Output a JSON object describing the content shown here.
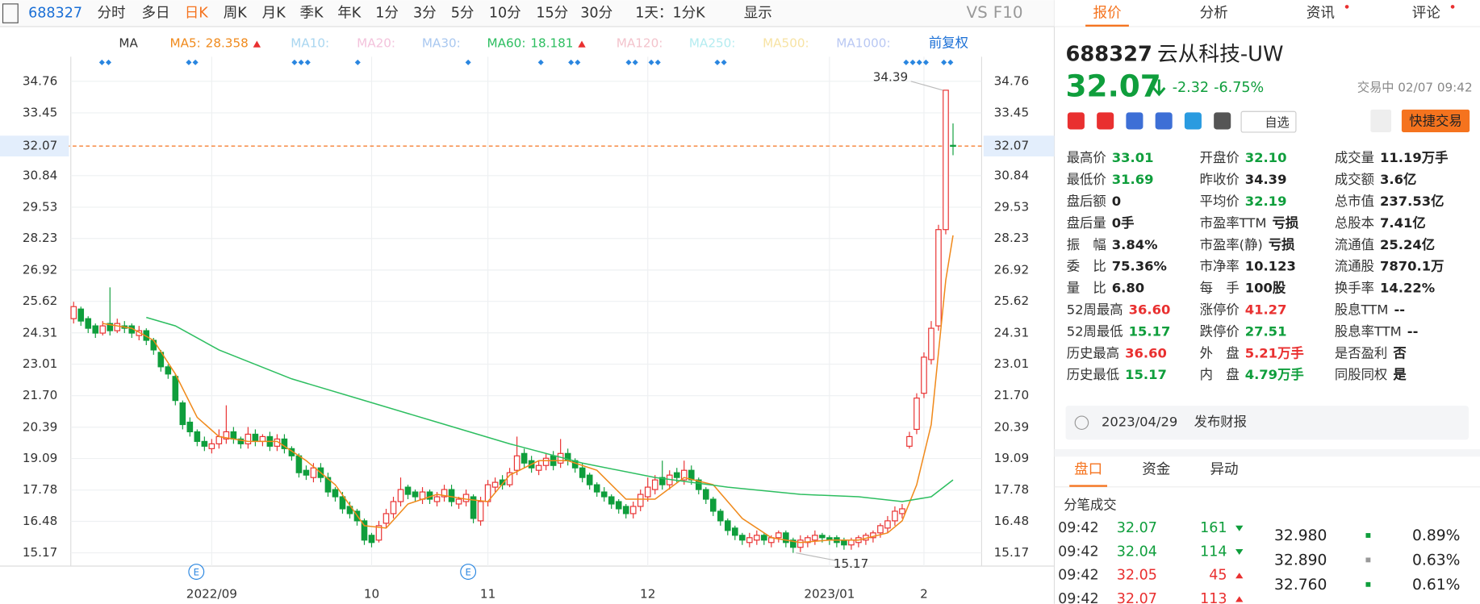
{
  "toolbar": {
    "code": "688327",
    "periods": [
      "分时",
      "多日",
      "日K",
      "周K",
      "月K",
      "季K",
      "年K",
      "1分",
      "3分",
      "5分",
      "10分",
      "15分",
      "30分"
    ],
    "range": "1天：1分K",
    "display": "显示",
    "vs": "VS",
    "f10": "F10"
  },
  "ma_bar": {
    "label": "MA",
    "adjust": "前复权"
  },
  "chart_data": {
    "type": "candlestick",
    "categories": [
      null,
      null,
      null,
      null,
      null,
      null,
      null,
      null,
      null,
      null,
      null,
      null,
      null,
      null,
      null,
      null,
      null,
      null,
      null,
      "2022/09",
      null,
      null,
      null,
      null,
      null,
      null,
      null,
      null,
      null,
      null,
      null,
      null,
      null,
      null,
      null,
      null,
      null,
      null,
      null,
      null,
      null,
      "10",
      null,
      null,
      null,
      null,
      null,
      null,
      null,
      null,
      null,
      null,
      null,
      null,
      null,
      null,
      null,
      "11",
      null,
      null,
      null,
      null,
      null,
      null,
      null,
      null,
      null,
      null,
      null,
      null,
      null,
      null,
      null,
      null,
      null,
      null,
      null,
      null,
      null,
      "12",
      null,
      null,
      null,
      null,
      null,
      null,
      null,
      null,
      null,
      null,
      null,
      null,
      null,
      null,
      null,
      null,
      null,
      null,
      null,
      null,
      null,
      null,
      null,
      null,
      "2023/01",
      null,
      null,
      null,
      null,
      null,
      null,
      null,
      null,
      null,
      null,
      null,
      null,
      "2",
      null,
      null,
      null,
      null
    ],
    "open": [
      24.9,
      25.3,
      24.9,
      24.6,
      24.3,
      24.7,
      24.4,
      24.6,
      24.6,
      24.2,
      24.4,
      24.0,
      23.5,
      22.9,
      22.5,
      21.4,
      20.6,
      20.2,
      19.8,
      19.5,
      19.7,
      19.9,
      20.2,
      19.9,
      19.7,
      20.1,
      19.8,
      20.0,
      19.6,
      19.9,
      19.5,
      19.2,
      18.6,
      18.3,
      18.7,
      18.3,
      17.8,
      17.5,
      17.1,
      16.9,
      16.5,
      15.9,
      15.7,
      16.4,
      16.8,
      17.3,
      17.9,
      17.7,
      17.4,
      17.7,
      17.3,
      17.5,
      17.8,
      17.2,
      17.3,
      17.5,
      16.5,
      17.3,
      17.9,
      18.2,
      18.0,
      18.6,
      19.3,
      19.0,
      18.6,
      18.8,
      19.2,
      18.9,
      19.3,
      19.0,
      18.7,
      18.4,
      18.0,
      17.7,
      17.5,
      17.3,
      17.1,
      16.8,
      17.1,
      17.5,
      17.8,
      18.3,
      18.0,
      18.5,
      18.2,
      18.6,
      18.2,
      17.8,
      17.4,
      16.9,
      16.5,
      16.2,
      15.9,
      15.6,
      15.7,
      15.9,
      15.6,
      15.8,
      16.0,
      15.7,
      15.4,
      15.6,
      15.7,
      15.9,
      15.8,
      15.8,
      15.7,
      15.5,
      15.6,
      15.7,
      15.8,
      16.0,
      16.2,
      16.5,
      16.8,
      19.6,
      20.3,
      21.8,
      23.2,
      24.6,
      28.6,
      32.1
    ],
    "high": [
      25.6,
      25.4,
      25.0,
      24.7,
      24.8,
      26.2,
      24.9,
      24.8,
      24.7,
      24.6,
      24.5,
      24.1,
      23.6,
      23.0,
      22.6,
      21.5,
      20.8,
      20.3,
      20.0,
      19.9,
      20.3,
      21.3,
      20.4,
      20.0,
      20.4,
      20.3,
      20.1,
      20.2,
      20.1,
      20.1,
      19.6,
      19.3,
      18.8,
      18.9,
      18.9,
      18.5,
      17.9,
      17.7,
      17.3,
      17.0,
      16.6,
      16.0,
      16.5,
      17.0,
      17.5,
      18.3,
      18.0,
      17.8,
      17.9,
      17.8,
      17.7,
      18.0,
      18.0,
      17.5,
      17.8,
      17.6,
      17.5,
      18.2,
      18.3,
      18.4,
      18.7,
      20.0,
      19.5,
      19.2,
      19.0,
      19.3,
      19.4,
      19.9,
      19.5,
      19.1,
      18.9,
      18.5,
      18.1,
      17.9,
      17.6,
      17.4,
      17.2,
      17.3,
      17.8,
      18.3,
      18.4,
      19.0,
      18.6,
      18.7,
      19.0,
      18.8,
      18.3,
      17.9,
      17.5,
      17.0,
      16.6,
      16.3,
      16.0,
      16.0,
      16.1,
      16.0,
      15.9,
      16.1,
      16.1,
      15.8,
      15.9,
      15.9,
      16.1,
      16.0,
      15.9,
      15.9,
      15.8,
      15.8,
      15.9,
      16.0,
      16.1,
      16.4,
      16.7,
      17.1,
      17.2,
      20.2,
      21.8,
      23.5,
      24.8,
      28.8,
      34.39,
      33.01
    ],
    "low": [
      24.7,
      24.6,
      24.3,
      24.1,
      24.2,
      24.2,
      24.3,
      24.3,
      24.1,
      24.0,
      23.8,
      23.4,
      22.7,
      22.4,
      21.3,
      20.3,
      20.0,
      19.6,
      19.4,
      19.3,
      19.5,
      19.7,
      19.7,
      19.5,
      19.5,
      19.6,
      19.6,
      19.4,
      19.4,
      19.3,
      19.0,
      18.3,
      18.2,
      18.1,
      18.1,
      17.5,
      17.3,
      16.8,
      16.6,
      16.3,
      15.5,
      15.4,
      15.6,
      16.2,
      16.6,
      17.1,
      17.4,
      17.3,
      17.2,
      17.2,
      17.1,
      17.3,
      17.1,
      17.0,
      17.1,
      16.4,
      16.3,
      17.1,
      17.7,
      17.8,
      17.9,
      18.4,
      18.7,
      18.5,
      18.4,
      18.6,
      18.6,
      18.7,
      18.8,
      18.5,
      18.1,
      17.8,
      17.5,
      17.3,
      17.0,
      16.8,
      16.6,
      16.6,
      16.9,
      17.3,
      17.6,
      17.8,
      17.8,
      18.1,
      18.0,
      18.0,
      17.6,
      17.2,
      16.7,
      16.3,
      15.9,
      15.7,
      15.5,
      15.4,
      15.5,
      15.5,
      15.4,
      15.6,
      15.4,
      15.17,
      15.2,
      15.4,
      15.5,
      15.6,
      15.5,
      15.4,
      15.3,
      15.3,
      15.4,
      15.5,
      15.6,
      15.8,
      16.0,
      16.3,
      16.6,
      19.5,
      20.1,
      21.6,
      23.0,
      24.4,
      28.4,
      31.69
    ],
    "close": [
      25.4,
      24.8,
      24.5,
      24.3,
      24.6,
      24.4,
      24.7,
      24.5,
      24.3,
      24.4,
      24.0,
      23.6,
      22.9,
      22.6,
      21.5,
      20.5,
      20.2,
      19.8,
      19.6,
      19.7,
      20.0,
      20.2,
      19.9,
      19.7,
      20.1,
      19.8,
      20.0,
      19.6,
      19.9,
      19.5,
      19.2,
      18.5,
      18.4,
      18.7,
      18.3,
      17.7,
      17.5,
      17.0,
      16.8,
      16.5,
      15.7,
      15.6,
      16.3,
      16.8,
      17.3,
      17.8,
      17.6,
      17.5,
      17.7,
      17.4,
      17.5,
      17.8,
      17.3,
      17.4,
      17.6,
      16.6,
      17.3,
      18.0,
      18.1,
      18.0,
      18.5,
      19.2,
      18.9,
      18.7,
      18.8,
      19.1,
      18.8,
      19.3,
      19.0,
      18.7,
      18.3,
      18.0,
      17.7,
      17.5,
      17.2,
      17.0,
      16.8,
      17.1,
      17.6,
      17.9,
      18.2,
      18.0,
      18.4,
      18.3,
      18.6,
      18.2,
      17.8,
      17.4,
      16.9,
      16.5,
      16.1,
      15.9,
      15.7,
      15.8,
      15.9,
      15.7,
      15.8,
      16.0,
      15.6,
      15.4,
      15.7,
      15.8,
      15.9,
      15.8,
      15.7,
      15.6,
      15.5,
      15.7,
      15.8,
      15.9,
      16.0,
      16.3,
      16.5,
      16.9,
      17.0,
      20.0,
      21.6,
      23.3,
      24.5,
      28.6,
      34.39,
      32.07
    ],
    "up_color": "#e93030",
    "down_color": "#0f9e3c",
    "ma": [
      {
        "name": "MA5:",
        "value": 28.358,
        "color": "#f08a1c",
        "x": [
          4,
          8,
          11,
          14,
          17,
          20,
          24,
          28,
          32,
          36,
          40,
          43,
          46,
          50,
          54,
          57,
          60,
          64,
          68,
          72,
          76,
          80,
          84,
          88,
          92,
          96,
          100,
          104,
          108,
          112,
          114,
          116,
          118,
          119,
          120,
          121
        ],
        "values": [
          24.7,
          24.5,
          24.0,
          22.6,
          20.8,
          20.0,
          19.8,
          19.8,
          19.0,
          18.0,
          16.3,
          16.2,
          17.2,
          17.6,
          17.4,
          17.3,
          18.4,
          19.0,
          19.0,
          18.6,
          17.4,
          17.4,
          18.3,
          18.0,
          16.6,
          15.8,
          15.6,
          15.7,
          15.7,
          16.0,
          16.5,
          18.0,
          20.5,
          23.5,
          26.5,
          28.358
        ]
      },
      {
        "name": "MA10:",
        "color": "#a9d6f0"
      },
      {
        "name": "MA20:",
        "color": "#f3c3dc"
      },
      {
        "name": "MA30:",
        "color": "#a9c8f0"
      },
      {
        "name": "MA60:",
        "value": 18.181,
        "color": "#2dbe60",
        "x": [
          10,
          14,
          20,
          30,
          40,
          50,
          60,
          70,
          80,
          90,
          100,
          108,
          114,
          118,
          121
        ],
        "values": [
          24.95,
          24.6,
          23.6,
          22.4,
          21.5,
          20.6,
          19.7,
          18.9,
          18.3,
          17.9,
          17.6,
          17.5,
          17.3,
          17.5,
          18.2
        ]
      },
      {
        "name": "MA120:",
        "color": "#f3c3cc"
      },
      {
        "name": "MA250:",
        "color": "#b4ecf0"
      },
      {
        "name": "MA500:",
        "color": "#f7e3a4"
      },
      {
        "name": "MA1000:",
        "color": "#b9c8f3"
      }
    ],
    "ylim": [
      14.62,
      35.78
    ],
    "yticks": [
      34.76,
      33.45,
      30.84,
      29.53,
      28.23,
      26.92,
      25.62,
      24.31,
      23.01,
      {
        "value": 21.7,
        "label": "21.70"
      },
      20.39,
      19.09,
      17.78,
      16.48,
      15.17
    ],
    "current_price": 32.07,
    "high_label": 34.39,
    "low_label": 15.17,
    "grid": true
  },
  "quote": {
    "tabs": [
      "报价",
      "分析",
      "资讯",
      "评论"
    ],
    "code": "688327",
    "name": "云从科技-UW",
    "price": "32.07",
    "change": "-2.32",
    "change_pct": "-6.75%",
    "status": "交易中 02/07 09:42",
    "watch": "自选",
    "trade": "快捷交易",
    "stats": [
      [
        {
          "label": "最高价",
          "value": "33.01",
          "color": "#0f9e3c"
        },
        {
          "label": "最低价",
          "value": "31.69",
          "color": "#0f9e3c"
        },
        {
          "label": "盘后额",
          "value": "0"
        },
        {
          "label": "盘后量",
          "value": "0手"
        },
        {
          "label": "振　幅",
          "value": "3.84%"
        },
        {
          "label": "委　比",
          "value": "75.36%"
        },
        {
          "label": "量　比",
          "value": "6.80"
        },
        {
          "label": "52周最高",
          "value": "36.60",
          "color": "#e93030"
        },
        {
          "label": "52周最低",
          "value": "15.17",
          "color": "#0f9e3c"
        },
        {
          "label": "历史最高",
          "value": "36.60",
          "color": "#e93030"
        },
        {
          "label": "历史最低",
          "value": "15.17",
          "color": "#0f9e3c"
        }
      ],
      [
        {
          "label": "开盘价",
          "value": "32.10",
          "color": "#0f9e3c"
        },
        {
          "label": "昨收价",
          "value": "34.39"
        },
        {
          "label": "平均价",
          "value": "32.19",
          "color": "#0f9e3c"
        },
        {
          "label": "市盈率TTM",
          "value": "亏损"
        },
        {
          "label": "市盈率(静)",
          "value": "亏损"
        },
        {
          "label": "市净率",
          "value": "10.123"
        },
        {
          "label": "每　手",
          "value": "100股"
        },
        {
          "label": "涨停价",
          "value": "41.27",
          "color": "#e93030"
        },
        {
          "label": "跌停价",
          "value": "27.51",
          "color": "#0f9e3c"
        },
        {
          "label": "外　盘",
          "value": "5.21万手",
          "color": "#e93030"
        },
        {
          "label": "内　盘",
          "value": "4.79万手",
          "color": "#0f9e3c"
        }
      ],
      [
        {
          "label": "成交量",
          "value": "11.19万手"
        },
        {
          "label": "成交额",
          "value": "3.6亿"
        },
        {
          "label": "总市值",
          "value": "237.53亿"
        },
        {
          "label": "总股本",
          "value": "7.41亿"
        },
        {
          "label": "流通值",
          "value": "25.24亿"
        },
        {
          "label": "流通股",
          "value": "7870.1万"
        },
        {
          "label": "换手率",
          "value": "14.22%"
        },
        {
          "label": "股息TTM",
          "value": "--"
        },
        {
          "label": "股息率TTM",
          "value": "--"
        },
        {
          "label": "是否盈利",
          "value": "否"
        },
        {
          "label": "同股同权",
          "value": "是"
        }
      ]
    ],
    "report": {
      "date": "2023/04/29",
      "text": "发布财报"
    }
  },
  "panel": {
    "tabs": [
      "盘口",
      "资金",
      "异动"
    ],
    "title": "分笔成交",
    "trades": [
      {
        "time": "09:42",
        "price": "32.07",
        "volume": "161",
        "color": "#0f9e3c"
      },
      {
        "time": "09:42",
        "price": "32.04",
        "volume": "114",
        "color": "#0f9e3c"
      },
      {
        "time": "09:42",
        "price": "32.05",
        "volume": "45",
        "color": "#e93030"
      },
      {
        "time": "09:42",
        "price": "32.07",
        "volume": "113",
        "color": "#e93030"
      }
    ],
    "depth": [
      {
        "price": "32.980",
        "pct": "0.89%"
      },
      {
        "price": "32.890",
        "pct": "0.63%"
      },
      {
        "price": "32.760",
        "pct": "0.61%"
      }
    ]
  }
}
